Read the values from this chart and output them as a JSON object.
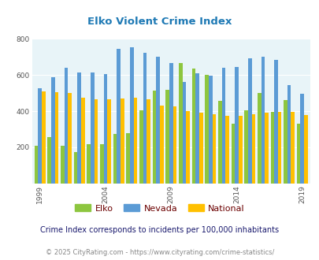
{
  "title": "Elko Violent Crime Index",
  "years": [
    1999,
    2000,
    2001,
    2002,
    2003,
    2004,
    2005,
    2006,
    2007,
    2008,
    2009,
    2010,
    2011,
    2012,
    2013,
    2014,
    2015,
    2016,
    2017,
    2018,
    2019
  ],
  "elko": [
    210,
    255,
    210,
    175,
    215,
    215,
    275,
    280,
    405,
    515,
    520,
    665,
    635,
    600,
    455,
    330,
    405,
    500,
    395,
    460,
    330
  ],
  "nevada": [
    525,
    590,
    640,
    615,
    615,
    605,
    745,
    755,
    725,
    700,
    665,
    560,
    610,
    595,
    640,
    645,
    695,
    700,
    685,
    545,
    495
  ],
  "national": [
    510,
    505,
    500,
    475,
    465,
    465,
    470,
    475,
    465,
    430,
    425,
    400,
    390,
    385,
    375,
    375,
    385,
    390,
    395,
    395,
    380
  ],
  "bar_colors": {
    "elko": "#8dc63f",
    "nevada": "#5b9bd5",
    "national": "#ffc000"
  },
  "bg_color": "#e8f4f8",
  "ylim": [
    0,
    800
  ],
  "yticks": [
    0,
    200,
    400,
    600,
    800
  ],
  "xtick_years": [
    1999,
    2004,
    2009,
    2014,
    2019
  ],
  "title_color": "#1f7ab5",
  "title_fontsize": 9.5,
  "legend_labels": [
    "Elko",
    "Nevada",
    "National"
  ],
  "legend_text_color": "#6b0000",
  "footnote1": "Crime Index corresponds to incidents per 100,000 inhabitants",
  "footnote2": "© 2025 CityRating.com - https://www.cityrating.com/crime-statistics/",
  "footnote1_color": "#1a1a6e",
  "footnote2_color": "#888888",
  "footnote1_fontsize": 7.0,
  "footnote2_fontsize": 6.0
}
